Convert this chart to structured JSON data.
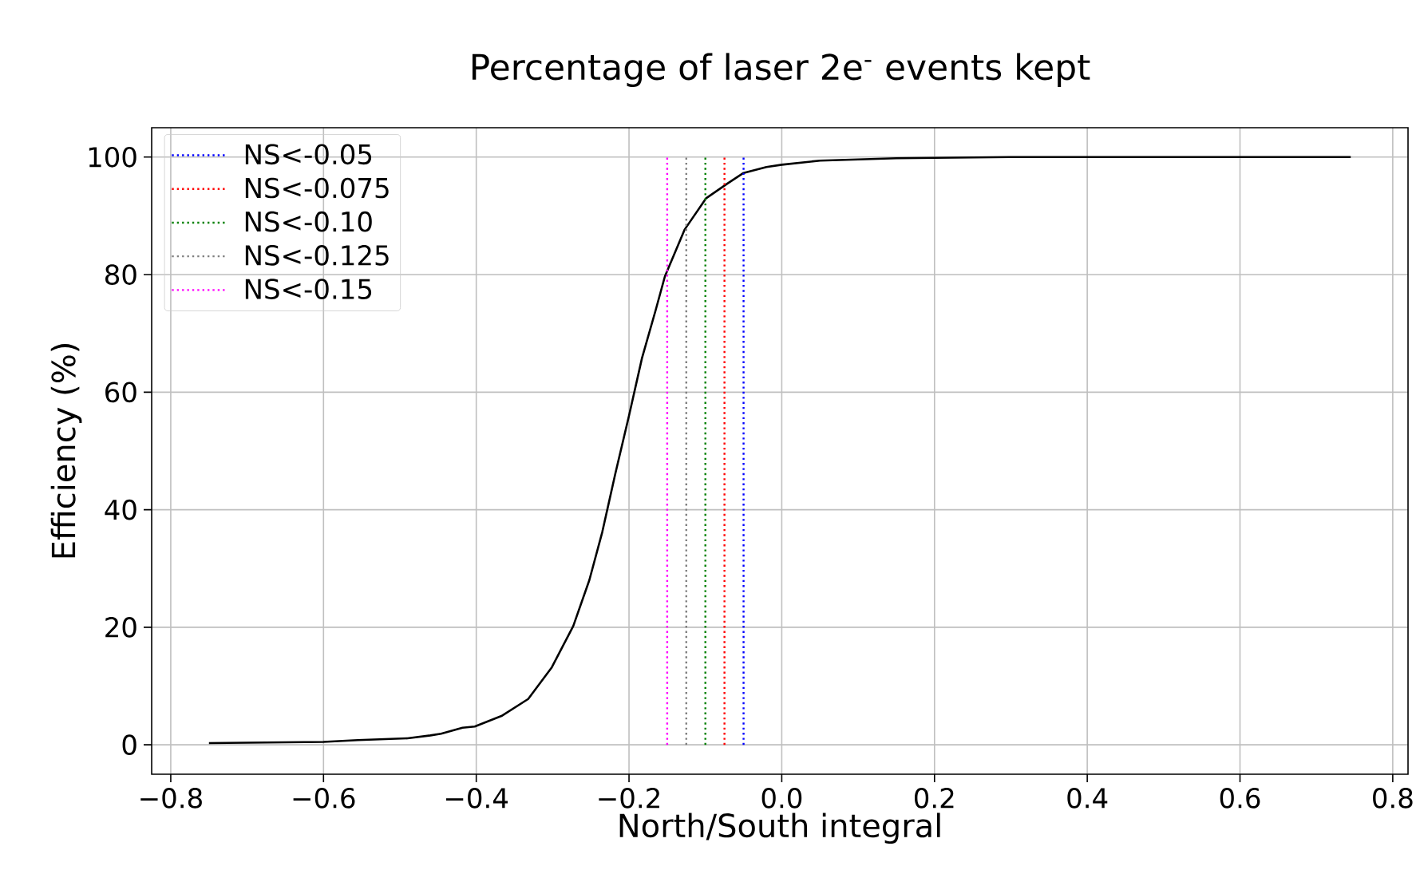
{
  "chart_data": {
    "type": "line",
    "title": "Percentage of laser 2e$^{-}$ events kept",
    "xlabel": "North/South integral",
    "ylabel": "Efficiency (%)",
    "xlim": [
      -0.825,
      0.82
    ],
    "ylim": [
      -5,
      105
    ],
    "xticks": [
      {
        "value": -0.8,
        "label": "−0.8"
      },
      {
        "value": -0.6,
        "label": "−0.6"
      },
      {
        "value": -0.4,
        "label": "−0.4"
      },
      {
        "value": -0.2,
        "label": "−0.2"
      },
      {
        "value": 0,
        "label": "0.0"
      },
      {
        "value": 0.2,
        "label": "0.2"
      },
      {
        "value": 0.4,
        "label": "0.4"
      },
      {
        "value": 0.6,
        "label": "0.6"
      },
      {
        "value": 0.8,
        "label": "0.8"
      }
    ],
    "yticks": [
      0,
      20,
      40,
      60,
      80,
      100
    ],
    "grid": true,
    "legend": "top left",
    "marker": "none",
    "line_style": "solid",
    "series": [
      {
        "color": "#000000",
        "x": [
          -0.75,
          -0.6,
          -0.555,
          -0.49,
          -0.46,
          -0.446,
          -0.418,
          -0.402,
          -0.367,
          -0.332,
          -0.301,
          -0.273,
          -0.252,
          -0.235,
          -0.218,
          -0.2,
          -0.183,
          -0.165,
          -0.153,
          -0.127,
          -0.099,
          -0.071,
          -0.05,
          -0.02,
          0.0,
          0.05,
          0.15,
          0.3,
          0.745
        ],
        "values": [
          0.3,
          0.5,
          0.8,
          1.1,
          1.6,
          1.9,
          2.9,
          3.1,
          4.9,
          7.8,
          13.2,
          20.2,
          28,
          36.2,
          46.1,
          56,
          65.8,
          74,
          79.7,
          87.7,
          93,
          95.5,
          97.3,
          98.3,
          98.7,
          99.4,
          99.8,
          100,
          100
        ]
      },
      {
        "name": "NS<-0.05",
        "color": "#0000ff",
        "line_style": "dotted",
        "x": [
          -0.05,
          -0.05
        ],
        "values": [
          0,
          100
        ]
      },
      {
        "name": "NS<-0.075",
        "color": "#ff0000",
        "line_style": "dotted",
        "x": [
          -0.075,
          -0.075
        ],
        "values": [
          0,
          100
        ]
      },
      {
        "name": "NS<-0.10",
        "color": "#008000",
        "line_style": "dotted",
        "x": [
          -0.1,
          -0.1
        ],
        "values": [
          0,
          100
        ]
      },
      {
        "name": "NS<-0.125",
        "color": "#808080",
        "line_style": "dotted",
        "x": [
          -0.125,
          -0.125
        ],
        "values": [
          0,
          100
        ]
      },
      {
        "name": "NS<-0.15",
        "color": "#ff00ff",
        "line_style": "dotted",
        "x": [
          -0.15,
          -0.15
        ],
        "values": [
          0,
          100
        ]
      }
    ]
  }
}
